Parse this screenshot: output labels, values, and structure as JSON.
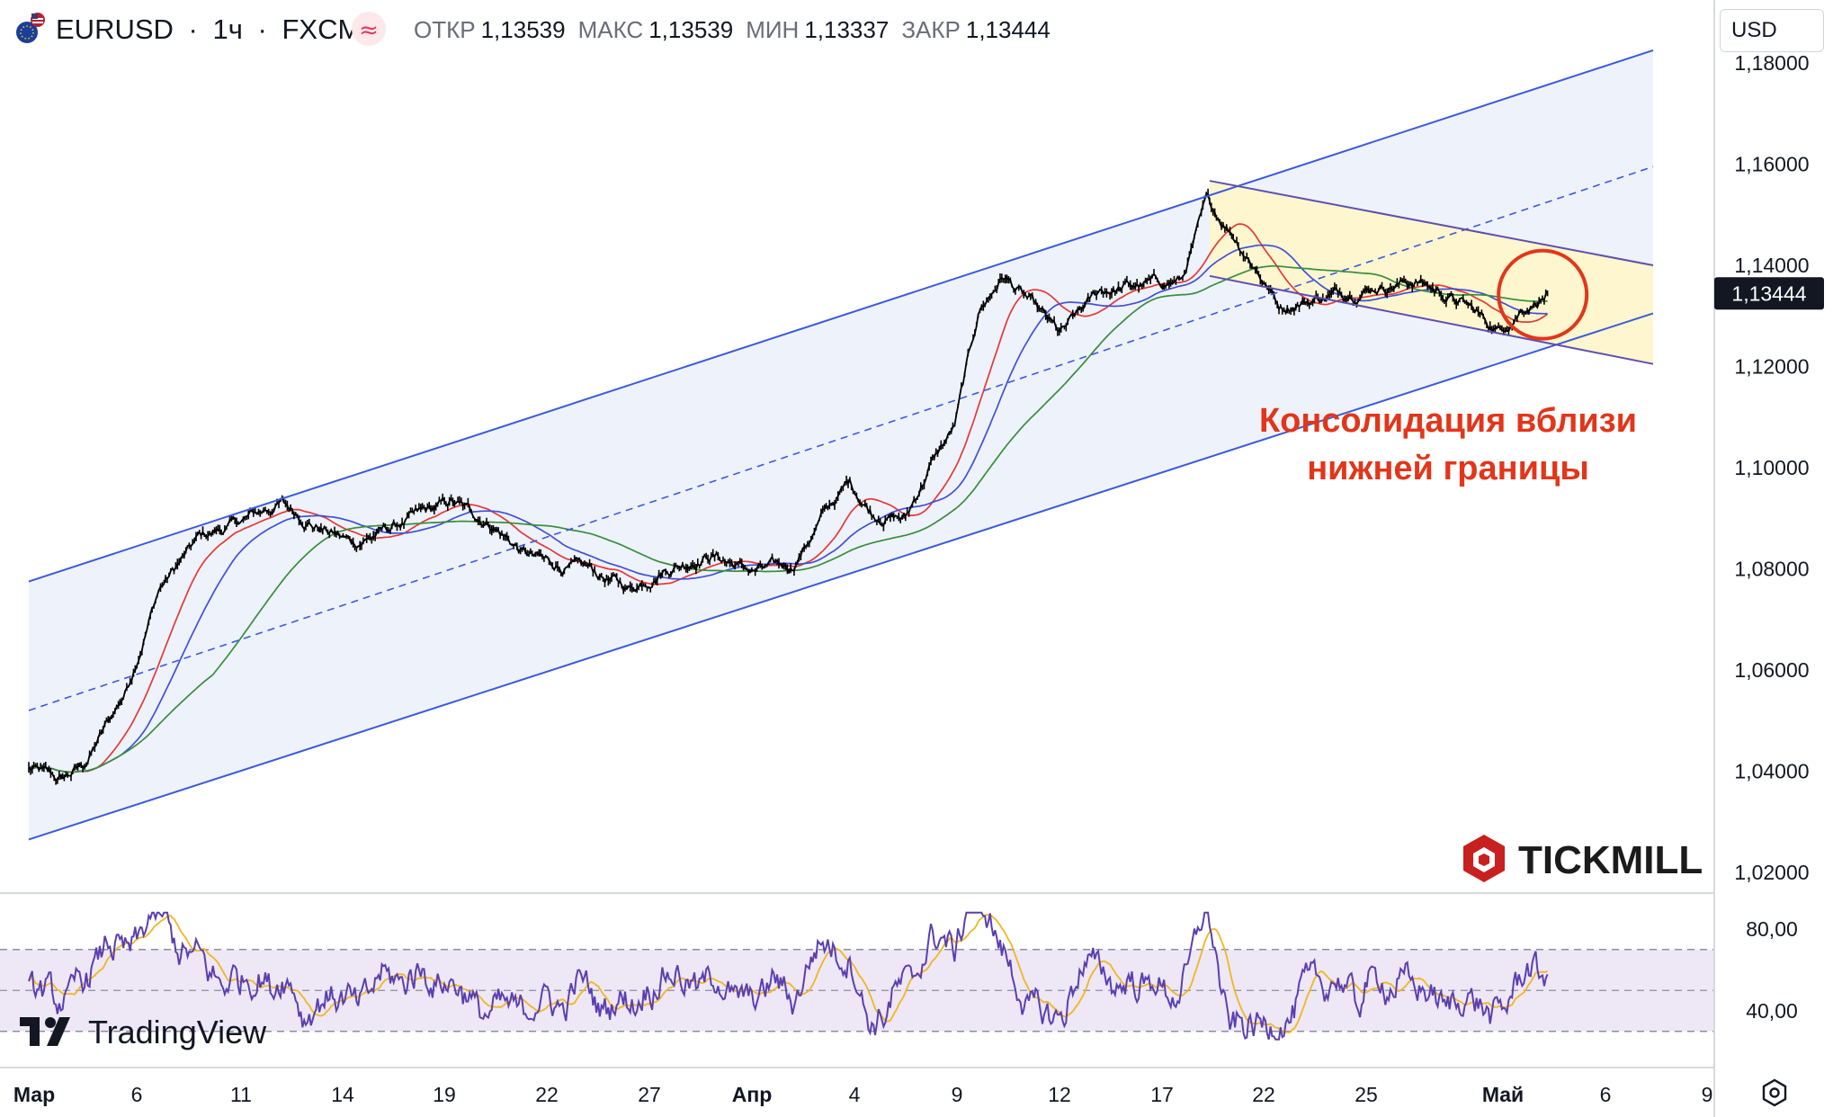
{
  "header": {
    "symbol": "EURUSD",
    "sep1": "·",
    "timeframe": "1ч",
    "sep2": "·",
    "source": "FXCM",
    "ohlc": [
      {
        "label": "ОТКР",
        "value": "1,13539"
      },
      {
        "label": "МАКС",
        "value": "1,13539"
      },
      {
        "label": "МИН",
        "value": "1,13337"
      },
      {
        "label": "ЗАКР",
        "value": "1,13444"
      }
    ],
    "currency": "USD",
    "flag_icon": "eu-us-flag-icon",
    "indicator_icon": "approx-icon"
  },
  "annotation": {
    "line1": "Консолидация вблизи",
    "line2": "нижней границы",
    "color": "#e2361a"
  },
  "branding": {
    "tickmill": "TICKMILL",
    "tradingview": "TradingView"
  },
  "colors": {
    "price": "#000000",
    "ma_fast": "#e53935",
    "ma_mid": "#3f51d8",
    "ma_slow": "#388e3c",
    "channel": "#3b5bdb",
    "channel_fill": "#eef2fb",
    "box_fill": "#fdf6cc",
    "box_line": "#5e4fb0",
    "rsi": "#5a3fb0",
    "rsi_signal": "#f2b61f",
    "rsi_band": "#ede7f6"
  },
  "chart_data": [
    {
      "type": "line",
      "name_display": "",
      "x_ticks": [
        "Мар",
        "6",
        "11",
        "14",
        "19",
        "22",
        "27",
        "Апр",
        "4",
        "9",
        "12",
        "17",
        "22",
        "25",
        "Май",
        "6",
        "9"
      ],
      "y_ticks": [
        "1,18000",
        "1,16000",
        "1,14000",
        "1,12000",
        "1,10000",
        "1,08000",
        "1,06000",
        "1,04000",
        "1,02000"
      ],
      "ylim": [
        1.0175,
        1.1815
      ],
      "last_price": "1,13444",
      "price_keypoints": [
        [
          0,
          1.0405
        ],
        [
          0.02,
          1.038
        ],
        [
          0.035,
          1.0415
        ],
        [
          0.06,
          1.056
        ],
        [
          0.08,
          1.076
        ],
        [
          0.105,
          1.086
        ],
        [
          0.125,
          1.0885
        ],
        [
          0.155,
          1.093
        ],
        [
          0.175,
          1.089
        ],
        [
          0.2,
          1.085
        ],
        [
          0.23,
          1.089
        ],
        [
          0.26,
          1.093
        ],
        [
          0.285,
          1.089
        ],
        [
          0.305,
          1.083
        ],
        [
          0.32,
          1.081
        ],
        [
          0.345,
          1.0795
        ],
        [
          0.37,
          1.076
        ],
        [
          0.39,
          1.08
        ],
        [
          0.42,
          1.083
        ],
        [
          0.445,
          1.0795
        ],
        [
          0.47,
          1.0805
        ],
        [
          0.49,
          1.091
        ],
        [
          0.505,
          1.097
        ],
        [
          0.52,
          1.091
        ],
        [
          0.54,
          1.09
        ],
        [
          0.555,
          1.1005
        ],
        [
          0.57,
          1.108
        ],
        [
          0.585,
          1.131
        ],
        [
          0.6,
          1.138
        ],
        [
          0.615,
          1.133
        ],
        [
          0.635,
          1.126
        ],
        [
          0.66,
          1.135
        ],
        [
          0.685,
          1.136
        ],
        [
          0.71,
          1.137
        ],
        [
          0.725,
          1.152
        ],
        [
          0.74,
          1.147
        ],
        [
          0.755,
          1.14
        ],
        [
          0.77,
          1.132
        ],
        [
          0.8,
          1.134
        ],
        [
          0.83,
          1.136
        ],
        [
          0.855,
          1.137
        ],
        [
          0.885,
          1.132
        ],
        [
          0.905,
          1.127
        ],
        [
          0.92,
          1.132
        ],
        [
          0.935,
          1.1344
        ]
      ],
      "series": [
        {
          "name": "",
          "role": "price"
        },
        {
          "name": "",
          "role": "ma_fast"
        },
        {
          "name": "",
          "role": "ma_mid"
        },
        {
          "name": "",
          "role": "ma_slow"
        }
      ],
      "channel": {
        "upper": [
          [
            0.0,
            1.0775
          ],
          [
            1.0,
            1.1825
          ]
        ],
        "lower": [
          [
            0.0,
            1.0265
          ],
          [
            1.0,
            1.1305
          ]
        ],
        "mid": [
          [
            0.0,
            1.052
          ],
          [
            1.0,
            1.1595
          ]
        ]
      },
      "consolidation_box": {
        "x_range": [
          0.727,
          1.0
        ],
        "upper": [
          1.1567,
          1.14
        ],
        "lower": [
          1.1379,
          1.1205
        ]
      },
      "highlight_circle": {
        "x": 0.932,
        "y": 1.1342
      }
    },
    {
      "type": "line",
      "name_display": "",
      "y_ticks": [
        "80,00",
        "40,00"
      ],
      "ylim": [
        20,
        95
      ],
      "band": [
        30,
        70
      ],
      "mid_level": 50,
      "series": [
        {
          "name": "",
          "role": "rsi"
        },
        {
          "name": "",
          "role": "rsi_signal"
        }
      ]
    }
  ]
}
